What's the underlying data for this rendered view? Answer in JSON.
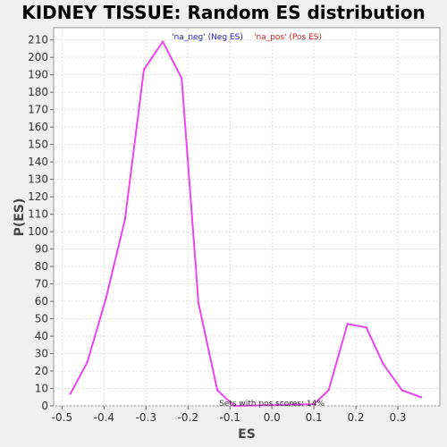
{
  "chart_data": {
    "type": "line",
    "title": "KIDNEY TISSUE: Random ES distribution",
    "xlabel": "ES",
    "ylabel": "P(ES)",
    "xlim": [
      -0.52,
      0.4
    ],
    "ylim": [
      0,
      217
    ],
    "xticks": [
      -0.5,
      -0.4,
      -0.3,
      -0.2,
      -0.1,
      0.0,
      0.1,
      0.2,
      0.3
    ],
    "xtick_labels": [
      "-0.5",
      "-0.4",
      "-0.3",
      "-0.2",
      "-0.1",
      "0.0",
      "0.1",
      "0.2",
      "0.3"
    ],
    "yticks": [
      0,
      10,
      20,
      30,
      40,
      50,
      60,
      70,
      80,
      90,
      100,
      110,
      120,
      130,
      140,
      150,
      160,
      170,
      180,
      190,
      200,
      210
    ],
    "ytick_labels": [
      "0",
      "10",
      "20",
      "30",
      "40",
      "50",
      "60",
      "70",
      "80",
      "90",
      "100",
      "110",
      "120",
      "130",
      "140",
      "150",
      "160",
      "170",
      "180",
      "190",
      "200",
      "210"
    ],
    "grid": true,
    "legend_position": "top-center",
    "series": [
      {
        "name": "'na_neg' (Neg ES)",
        "color": "#0000cc",
        "x": [],
        "y": []
      },
      {
        "name": "'na_pos' (Pos ES)",
        "color": "#cc0000",
        "x": [],
        "y": []
      },
      {
        "name": "",
        "color": "#ee44ee",
        "x": [
          -0.48,
          -0.44,
          -0.395,
          -0.35,
          -0.305,
          -0.26,
          -0.215,
          -0.175,
          -0.13,
          -0.09,
          0.1,
          0.135,
          0.18,
          0.225,
          0.265,
          0.31,
          0.355
        ],
        "y": [
          7,
          25,
          62,
          107,
          193,
          209,
          188,
          59,
          9,
          0,
          1,
          9,
          47,
          45,
          24,
          9,
          5
        ]
      }
    ],
    "annotation": "Sets with pos scores: 14%"
  }
}
